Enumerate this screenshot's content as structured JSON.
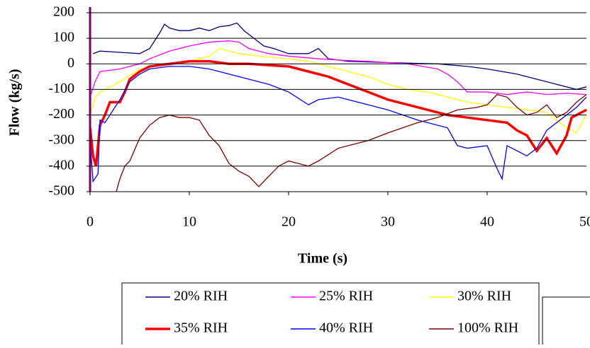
{
  "chart_data": {
    "type": "line",
    "x_label": "Time (s)",
    "y_label": "Flow (kg/s)",
    "xlim": [
      0,
      50
    ],
    "xticks": [
      0,
      10,
      20,
      30,
      40,
      50
    ],
    "ylim": [
      -500,
      200
    ],
    "yticks": [
      -500,
      -400,
      -300,
      -200,
      -100,
      0,
      100,
      200
    ],
    "grid": true,
    "series": [
      {
        "name": "20% RIH",
        "color": "#000080",
        "x": [
          0.3,
          1,
          3,
          5,
          6,
          7,
          7.5,
          8,
          9,
          10,
          11,
          12,
          13,
          14,
          14.8,
          15.5,
          16.5,
          17.5,
          18.5,
          20,
          22,
          23,
          24,
          26,
          30,
          35,
          38,
          40,
          43,
          45,
          47,
          49,
          50
        ],
        "values": [
          40,
          50,
          45,
          40,
          60,
          120,
          155,
          140,
          130,
          130,
          140,
          130,
          145,
          150,
          160,
          130,
          100,
          70,
          60,
          40,
          40,
          60,
          20,
          10,
          5,
          0,
          -10,
          -20,
          -40,
          -60,
          -80,
          -100,
          -90
        ]
      },
      {
        "name": "25% RIH",
        "color": "#ff00ff",
        "x": [
          0,
          0.5,
          1,
          3,
          4,
          5,
          6,
          8,
          10,
          12,
          14,
          15,
          16,
          18,
          20,
          23,
          25,
          28,
          32,
          35,
          36,
          37,
          38,
          40,
          42,
          44,
          46,
          48,
          50
        ],
        "values": [
          -130,
          -70,
          -30,
          -20,
          -10,
          0,
          20,
          50,
          70,
          85,
          90,
          85,
          60,
          40,
          30,
          20,
          15,
          10,
          0,
          -20,
          -40,
          -70,
          -110,
          -110,
          -120,
          -110,
          -120,
          -115,
          -120
        ]
      },
      {
        "name": "30% RIH",
        "color": "#ffff00",
        "x": [
          0,
          0.5,
          1,
          2,
          3,
          5,
          8,
          10,
          12,
          13,
          14,
          15,
          17,
          20,
          22,
          25,
          28,
          30,
          32,
          34,
          36,
          38,
          40,
          42,
          44,
          46,
          48,
          49,
          50
        ],
        "values": [
          -200,
          -130,
          -110,
          -90,
          -70,
          -20,
          0,
          10,
          30,
          60,
          50,
          40,
          30,
          20,
          10,
          -20,
          -50,
          -80,
          -100,
          -110,
          -130,
          -150,
          -160,
          -170,
          -180,
          -190,
          -250,
          -270,
          -200
        ]
      },
      {
        "name": "35% RIH",
        "color": "#ff0000",
        "x": [
          0,
          0.3,
          0.6,
          1,
          1.5,
          2,
          3,
          3.5,
          4,
          5,
          6,
          8,
          10,
          12,
          14,
          16,
          18,
          20,
          22,
          24,
          26,
          28,
          30,
          32,
          34,
          36,
          38,
          40,
          42,
          43,
          44,
          45,
          46,
          47,
          48,
          48.5,
          49,
          50
        ],
        "values": [
          -250,
          -360,
          -400,
          -240,
          -200,
          -150,
          -150,
          -110,
          -60,
          -30,
          -10,
          0,
          10,
          10,
          0,
          0,
          -5,
          -10,
          -30,
          -50,
          -80,
          -110,
          -140,
          -160,
          -180,
          -200,
          -210,
          -220,
          -230,
          -260,
          -280,
          -340,
          -290,
          -350,
          -280,
          -210,
          -200,
          -180
        ]
      },
      {
        "name": "40% RIH",
        "color": "#0000ff",
        "x": [
          0,
          0.3,
          0.8,
          1,
          1.5,
          2,
          3,
          4,
          5,
          6,
          8,
          10,
          12,
          14,
          16,
          18,
          20,
          22,
          23,
          25,
          28,
          30,
          33,
          36,
          37,
          38,
          40,
          41,
          41.5,
          42,
          43,
          44,
          45,
          46,
          47,
          48,
          49,
          50
        ],
        "values": [
          -300,
          -460,
          -430,
          -220,
          -230,
          -200,
          -140,
          -70,
          -40,
          -20,
          -10,
          -10,
          -20,
          -40,
          -60,
          -80,
          -110,
          -160,
          -140,
          -130,
          -160,
          -180,
          -220,
          -250,
          -320,
          -330,
          -320,
          -410,
          -450,
          -320,
          -340,
          -360,
          -330,
          -260,
          -230,
          -200,
          -170,
          -130
        ]
      },
      {
        "name": "100% RIH",
        "color": "#800000",
        "x": [
          2.5,
          3,
          3.5,
          4,
          5,
          6,
          7,
          8,
          9,
          10,
          11,
          12,
          13,
          14,
          15,
          16,
          17,
          18,
          19,
          20,
          22,
          23,
          25,
          28,
          30,
          33,
          35,
          37,
          39,
          40,
          41,
          42,
          43,
          44,
          45,
          46,
          47,
          48,
          49,
          50
        ],
        "values": [
          -520,
          -450,
          -400,
          -380,
          -290,
          -240,
          -210,
          -200,
          -210,
          -210,
          -220,
          -280,
          -320,
          -390,
          -420,
          -440,
          -480,
          -440,
          -400,
          -380,
          -400,
          -380,
          -330,
          -300,
          -270,
          -230,
          -210,
          -180,
          -170,
          -160,
          -120,
          -130,
          -170,
          -200,
          -190,
          -160,
          -210,
          -190,
          -150,
          -120
        ]
      }
    ]
  }
}
